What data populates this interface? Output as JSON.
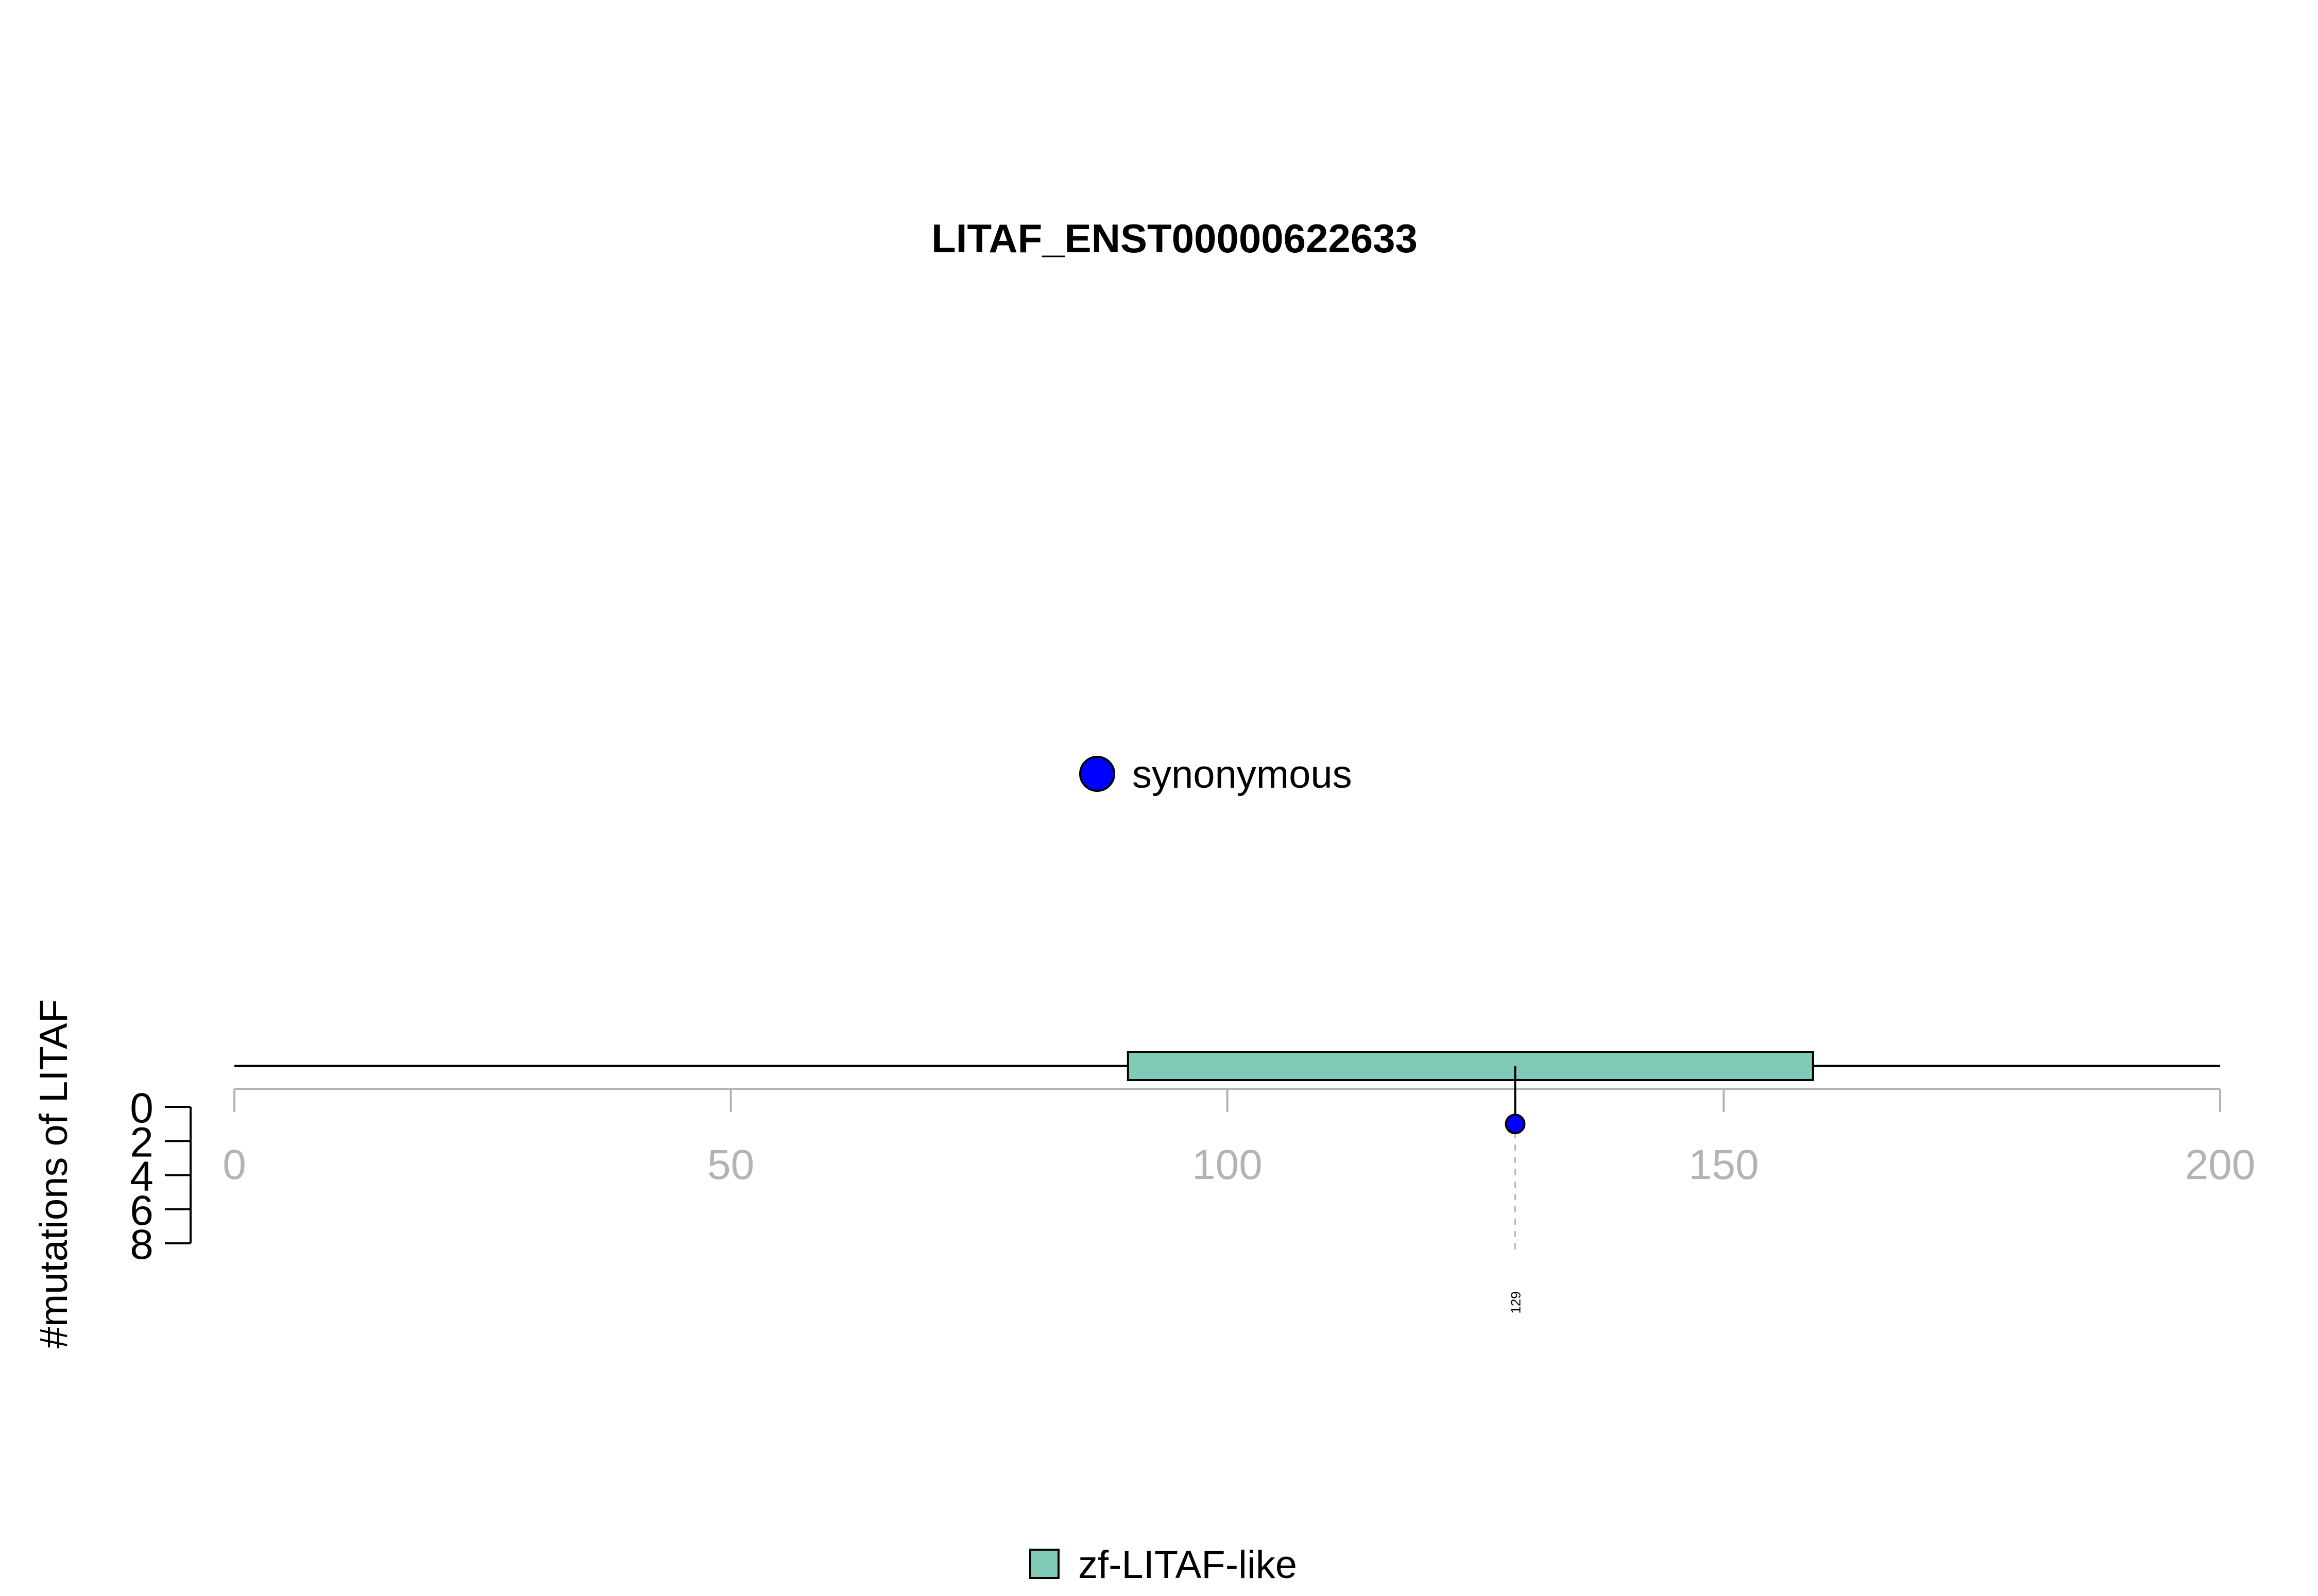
{
  "chart_data": {
    "type": "lollipop",
    "title": "LITAF_ENST00000622633",
    "ylabel": "#mutations of LITAF",
    "protein_length": 200,
    "xlim": [
      0,
      200
    ],
    "x_ticks": [
      0,
      50,
      100,
      150,
      200
    ],
    "y_ticks": [
      "0",
      "2",
      "4",
      "6",
      "8"
    ],
    "ylim": [
      0,
      8
    ],
    "domains": [
      {
        "name": "zf-LITAF-like",
        "start": 90,
        "end": 159,
        "color": "#7fcbb7"
      }
    ],
    "mutations": [
      {
        "position": 129,
        "count": 1,
        "type": "synonymous",
        "label": "129",
        "color": "#0000ff"
      }
    ],
    "legend": {
      "mutation_types": [
        {
          "label": "synonymous",
          "color": "#0000ff"
        }
      ],
      "domains": [
        {
          "label": "zf-LITAF-like",
          "color": "#7fcbb7"
        }
      ]
    }
  }
}
